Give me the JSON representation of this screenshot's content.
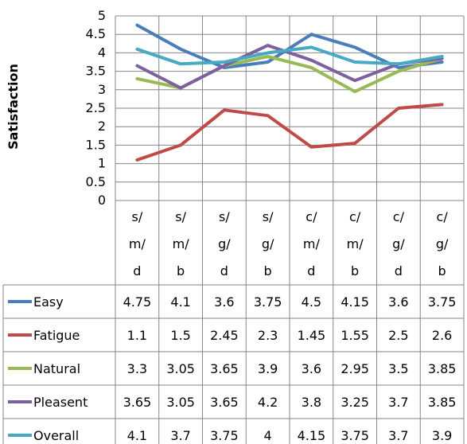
{
  "chart_data": {
    "type": "line",
    "ylabel": "Satisfaction",
    "ylim": [
      0,
      5
    ],
    "yticks": [
      "0",
      "0.5",
      "1",
      "1.5",
      "2",
      "2.5",
      "3",
      "3.5",
      "4",
      "4.5",
      "5"
    ],
    "categories": [
      [
        "s/",
        "m/",
        "d"
      ],
      [
        "s/",
        "m/",
        "b"
      ],
      [
        "s/",
        "g/",
        "d"
      ],
      [
        "s/",
        "g/",
        "b"
      ],
      [
        "c/",
        "m/",
        "d"
      ],
      [
        "c/",
        "m/",
        "b"
      ],
      [
        "c/",
        "g/",
        "d"
      ],
      [
        "c/",
        "g/",
        "b"
      ]
    ],
    "grid": true,
    "legend": "data-table",
    "series": [
      {
        "name": "Easy",
        "color": "#4a7ebb",
        "values": [
          4.75,
          4.1,
          3.6,
          3.75,
          4.5,
          4.15,
          3.6,
          3.75
        ],
        "labels": [
          "4.75",
          "4.1",
          "3.6",
          "3.75",
          "4.5",
          "4.15",
          "3.6",
          "3.75"
        ]
      },
      {
        "name": "Fatigue",
        "color": "#be4b48",
        "values": [
          1.1,
          1.5,
          2.45,
          2.3,
          1.45,
          1.55,
          2.5,
          2.6
        ],
        "labels": [
          "1.1",
          "1.5",
          "2.45",
          "2.3",
          "1.45",
          "1.55",
          "2.5",
          "2.6"
        ]
      },
      {
        "name": "Natural",
        "color": "#98b954",
        "values": [
          3.3,
          3.05,
          3.65,
          3.9,
          3.6,
          2.95,
          3.5,
          3.85
        ],
        "labels": [
          "3.3",
          "3.05",
          "3.65",
          "3.9",
          "3.6",
          "2.95",
          "3.5",
          "3.85"
        ]
      },
      {
        "name": "Pleasent",
        "color": "#7d60a0",
        "values": [
          3.65,
          3.05,
          3.65,
          4.2,
          3.8,
          3.25,
          3.7,
          3.85
        ],
        "labels": [
          "3.65",
          "3.05",
          "3.65",
          "4.2",
          "3.8",
          "3.25",
          "3.7",
          "3.85"
        ]
      },
      {
        "name": "Overall",
        "color": "#46aac5",
        "values": [
          4.1,
          3.7,
          3.75,
          4,
          4.15,
          3.75,
          3.7,
          3.9
        ],
        "labels": [
          "4.1",
          "3.7",
          "3.75",
          "4",
          "4.15",
          "3.75",
          "3.7",
          "3.9"
        ]
      }
    ]
  }
}
